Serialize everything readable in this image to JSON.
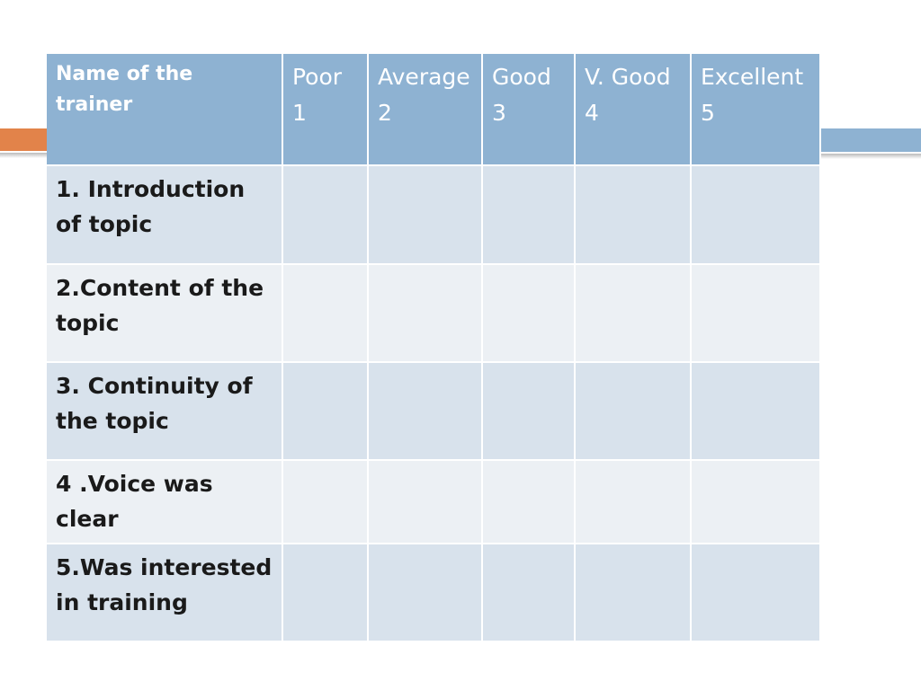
{
  "table": {
    "header": [
      {
        "label": "Name of the trainer"
      },
      {
        "label": "Poor",
        "score": "1"
      },
      {
        "label": "Average",
        "score": "2"
      },
      {
        "label": "Good",
        "score": "3"
      },
      {
        "label": "V. Good",
        "score": "4"
      },
      {
        "label": "Excellent",
        "score": "5"
      }
    ],
    "rows": [
      "1. Introduction of topic",
      "2.Content of the topic",
      "3. Continuity of the topic",
      "4 .Voice was clear",
      "5.Was interested in training"
    ]
  }
}
